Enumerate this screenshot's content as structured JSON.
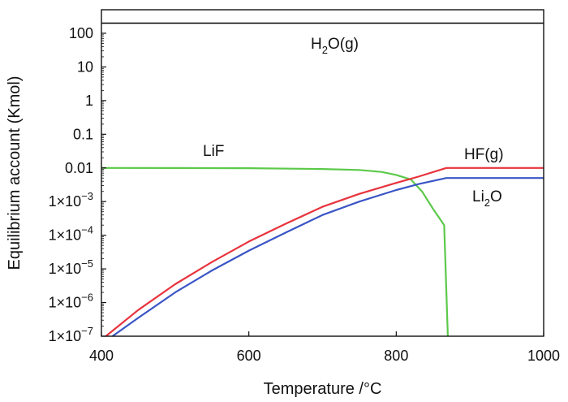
{
  "chart_data": {
    "type": "line",
    "title": "",
    "xlabel": "Temperature /°C",
    "ylabel": "Equilibrium account (Kmol)",
    "xlim": [
      400,
      1000
    ],
    "ylim": [
      1e-07,
      500
    ],
    "yscale": "log",
    "grid": false,
    "x_ticks": [
      {
        "value": 400,
        "label": "400"
      },
      {
        "value": 600,
        "label": "600"
      },
      {
        "value": 800,
        "label": "800"
      },
      {
        "value": 1000,
        "label": "1000"
      }
    ],
    "y_ticks": [
      {
        "value": 100,
        "base": "100",
        "exp": ""
      },
      {
        "value": 10,
        "base": "10",
        "exp": ""
      },
      {
        "value": 1,
        "base": "1",
        "exp": ""
      },
      {
        "value": 0.1,
        "base": "0.1",
        "exp": ""
      },
      {
        "value": 0.01,
        "base": "0.01",
        "exp": ""
      },
      {
        "value": 0.001,
        "base": "1×10",
        "exp": "−3"
      },
      {
        "value": 0.0001,
        "base": "1×10",
        "exp": "−4"
      },
      {
        "value": 1e-05,
        "base": "1×10",
        "exp": "−5"
      },
      {
        "value": 1e-06,
        "base": "1×10",
        "exp": "−6"
      },
      {
        "value": 1e-07,
        "base": "1×10",
        "exp": "−7"
      }
    ],
    "series": [
      {
        "key": "h2o",
        "label_main": "H",
        "label_sub": "2",
        "label_rest": "O(g)",
        "color": "#000000",
        "x": [
          400,
          1000
        ],
        "y": [
          200,
          200
        ]
      },
      {
        "key": "lif",
        "label_main": "LiF",
        "label_sub": "",
        "label_rest": "",
        "color": "#5cc94a",
        "x": [
          400,
          500,
          600,
          700,
          750,
          780,
          800,
          820,
          835,
          850,
          865,
          870
        ],
        "y": [
          0.01,
          0.0099,
          0.0098,
          0.0093,
          0.0087,
          0.0076,
          0.0062,
          0.0045,
          0.002,
          0.0006,
          0.0002,
          1e-07
        ]
      },
      {
        "key": "hf",
        "label_main": "HF(g)",
        "label_sub": "",
        "label_rest": "",
        "color": "#e8333d",
        "x": [
          406,
          450,
          500,
          550,
          600,
          650,
          700,
          750,
          800,
          830,
          868,
          1000
        ],
        "y": [
          1e-07,
          6e-07,
          3.5e-06,
          1.6e-05,
          6.5e-05,
          0.00022,
          0.0007,
          0.0017,
          0.0036,
          0.0055,
          0.01,
          0.01
        ]
      },
      {
        "key": "li2o",
        "label_main": "Li",
        "label_sub": "2",
        "label_rest": "O",
        "color": "#3a55c6",
        "x": [
          415,
          450,
          500,
          550,
          600,
          650,
          700,
          750,
          800,
          830,
          868,
          1000
        ],
        "y": [
          1e-07,
          3.5e-07,
          2e-06,
          9e-06,
          3.5e-05,
          0.00012,
          0.0004,
          0.001,
          0.0022,
          0.0033,
          0.005,
          0.005
        ]
      }
    ]
  }
}
